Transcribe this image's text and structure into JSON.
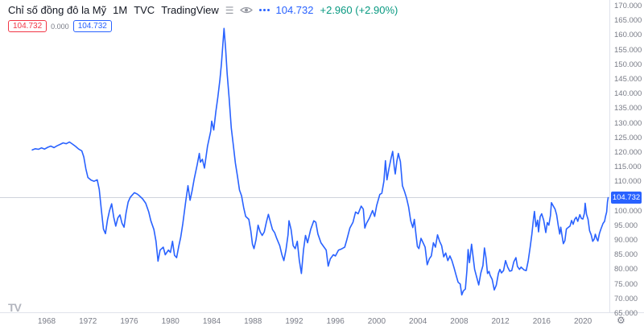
{
  "header": {
    "symbol": "Chỉ số đồng đô la Mỹ",
    "interval": "1M",
    "exchange": "TVC",
    "brand": "TradingView",
    "last_price": "104.732",
    "change": "+2.960 (+2.90%)"
  },
  "trade": {
    "sell": "104.732",
    "spread": "0.000",
    "buy": "104.732"
  },
  "price_axis": {
    "ticks": [
      "170.000",
      "165.000",
      "160.000",
      "155.000",
      "150.000",
      "145.000",
      "140.000",
      "135.000",
      "130.000",
      "125.000",
      "120.000",
      "115.000",
      "110.000",
      "105.000",
      "100.000",
      "95.000",
      "90.000",
      "85.000",
      "80.000",
      "75.000",
      "70.000",
      "65.000"
    ],
    "last_price_label": "104.732"
  },
  "time_axis": {
    "ticks": [
      "1968",
      "1972",
      "1976",
      "1980",
      "1984",
      "1988",
      "1992",
      "1996",
      "2000",
      "2004",
      "2008",
      "2012",
      "2016",
      "2020"
    ]
  },
  "footer": {
    "logo": "TV"
  },
  "colors": {
    "line": "#2962FF",
    "up": "#089981",
    "down": "#F23645",
    "axis_text": "#787B86",
    "grid": "#E0E3EB",
    "price_line": "#CFD3DC",
    "badge_bg": "#2962FF"
  },
  "chart_data": {
    "type": "line",
    "title": "Chỉ số đồng đô la Mỹ (US Dollar Index), 1M, TVC",
    "xlabel": "",
    "ylabel": "",
    "xlim": [
      1966.5,
      2023.2
    ],
    "ylim": [
      65,
      170
    ],
    "x_ticks": [
      1968,
      1972,
      1976,
      1980,
      1984,
      1988,
      1992,
      1996,
      2000,
      2004,
      2008,
      2012,
      2016,
      2020
    ],
    "y_ticks": [
      65,
      70,
      75,
      80,
      85,
      90,
      95,
      100,
      105,
      110,
      115,
      120,
      125,
      130,
      135,
      140,
      145,
      150,
      155,
      160,
      165,
      170
    ],
    "grid": "off",
    "last": 104.732,
    "change": 2.96,
    "change_pct": 2.9,
    "points": [
      [
        1966.6,
        121.0
      ],
      [
        1966.9,
        121.4
      ],
      [
        1967.2,
        121.2
      ],
      [
        1967.5,
        121.7
      ],
      [
        1967.8,
        121.3
      ],
      [
        1968.1,
        121.9
      ],
      [
        1968.4,
        122.3
      ],
      [
        1968.7,
        121.8
      ],
      [
        1969.0,
        122.4
      ],
      [
        1969.3,
        122.9
      ],
      [
        1969.6,
        123.4
      ],
      [
        1969.9,
        123.1
      ],
      [
        1970.2,
        123.7
      ],
      [
        1970.5,
        123.0
      ],
      [
        1970.8,
        122.2
      ],
      [
        1971.1,
        121.3
      ],
      [
        1971.4,
        120.7
      ],
      [
        1971.6,
        118.6
      ],
      [
        1971.8,
        114.5
      ],
      [
        1972.0,
        111.6
      ],
      [
        1972.3,
        110.7
      ],
      [
        1972.6,
        110.3
      ],
      [
        1972.9,
        110.8
      ],
      [
        1973.1,
        107.5
      ],
      [
        1973.3,
        100.5
      ],
      [
        1973.5,
        94.0
      ],
      [
        1973.7,
        92.4
      ],
      [
        1973.9,
        97.2
      ],
      [
        1974.1,
        100.3
      ],
      [
        1974.3,
        102.6
      ],
      [
        1974.5,
        98.0
      ],
      [
        1974.7,
        95.0
      ],
      [
        1974.9,
        97.8
      ],
      [
        1975.1,
        98.8
      ],
      [
        1975.3,
        96.0
      ],
      [
        1975.5,
        94.6
      ],
      [
        1975.7,
        99.5
      ],
      [
        1975.9,
        103.2
      ],
      [
        1976.1,
        104.8
      ],
      [
        1976.3,
        105.6
      ],
      [
        1976.5,
        106.4
      ],
      [
        1976.8,
        105.9
      ],
      [
        1977.0,
        105.3
      ],
      [
        1977.3,
        104.3
      ],
      [
        1977.6,
        102.8
      ],
      [
        1977.9,
        99.8
      ],
      [
        1978.1,
        96.8
      ],
      [
        1978.4,
        93.8
      ],
      [
        1978.6,
        89.8
      ],
      [
        1978.8,
        83.0
      ],
      [
        1979.0,
        86.8
      ],
      [
        1979.3,
        87.8
      ],
      [
        1979.5,
        85.2
      ],
      [
        1979.8,
        86.8
      ],
      [
        1980.0,
        86.0
      ],
      [
        1980.2,
        89.8
      ],
      [
        1980.4,
        85.0
      ],
      [
        1980.6,
        84.2
      ],
      [
        1980.8,
        88.0
      ],
      [
        1981.0,
        91.2
      ],
      [
        1981.2,
        95.8
      ],
      [
        1981.5,
        103.8
      ],
      [
        1981.7,
        108.8
      ],
      [
        1981.9,
        103.8
      ],
      [
        1982.1,
        107.0
      ],
      [
        1982.3,
        111.0
      ],
      [
        1982.6,
        116.0
      ],
      [
        1982.8,
        119.8
      ],
      [
        1982.9,
        116.8
      ],
      [
        1983.1,
        117.8
      ],
      [
        1983.3,
        114.8
      ],
      [
        1983.6,
        122.3
      ],
      [
        1983.9,
        127.3
      ],
      [
        1984.0,
        130.8
      ],
      [
        1984.2,
        127.8
      ],
      [
        1984.4,
        134.0
      ],
      [
        1984.6,
        139.0
      ],
      [
        1984.8,
        145.0
      ],
      [
        1984.95,
        150.5
      ],
      [
        1985.1,
        158.0
      ],
      [
        1985.2,
        162.5
      ],
      [
        1985.35,
        155.5
      ],
      [
        1985.5,
        147.0
      ],
      [
        1985.7,
        138.5
      ],
      [
        1985.9,
        128.5
      ],
      [
        1986.1,
        122.5
      ],
      [
        1986.3,
        116.5
      ],
      [
        1986.5,
        112.0
      ],
      [
        1986.7,
        107.3
      ],
      [
        1986.9,
        105.3
      ],
      [
        1987.1,
        101.3
      ],
      [
        1987.3,
        98.3
      ],
      [
        1987.6,
        97.3
      ],
      [
        1987.8,
        93.3
      ],
      [
        1987.95,
        88.8
      ],
      [
        1988.1,
        87.3
      ],
      [
        1988.3,
        90.3
      ],
      [
        1988.5,
        95.3
      ],
      [
        1988.7,
        93.0
      ],
      [
        1988.9,
        91.8
      ],
      [
        1989.1,
        93.0
      ],
      [
        1989.3,
        96.3
      ],
      [
        1989.5,
        99.0
      ],
      [
        1989.7,
        96.3
      ],
      [
        1989.9,
        93.8
      ],
      [
        1990.1,
        92.8
      ],
      [
        1990.3,
        90.8
      ],
      [
        1990.6,
        88.3
      ],
      [
        1990.8,
        85.3
      ],
      [
        1991.0,
        83.2
      ],
      [
        1991.2,
        86.8
      ],
      [
        1991.4,
        92.0
      ],
      [
        1991.5,
        96.8
      ],
      [
        1991.7,
        93.8
      ],
      [
        1991.9,
        88.3
      ],
      [
        1992.1,
        87.3
      ],
      [
        1992.3,
        89.8
      ],
      [
        1992.5,
        83.3
      ],
      [
        1992.7,
        78.8
      ],
      [
        1992.9,
        86.8
      ],
      [
        1993.1,
        91.8
      ],
      [
        1993.3,
        89.3
      ],
      [
        1993.6,
        93.8
      ],
      [
        1993.9,
        96.8
      ],
      [
        1994.1,
        96.3
      ],
      [
        1994.3,
        92.3
      ],
      [
        1994.6,
        89.3
      ],
      [
        1994.9,
        87.8
      ],
      [
        1995.1,
        86.8
      ],
      [
        1995.3,
        81.3
      ],
      [
        1995.5,
        83.8
      ],
      [
        1995.8,
        85.2
      ],
      [
        1996.0,
        84.8
      ],
      [
        1996.3,
        86.8
      ],
      [
        1996.6,
        87.2
      ],
      [
        1996.9,
        87.8
      ],
      [
        1997.1,
        90.3
      ],
      [
        1997.4,
        94.3
      ],
      [
        1997.7,
        96.3
      ],
      [
        1997.95,
        99.8
      ],
      [
        1998.2,
        99.2
      ],
      [
        1998.5,
        101.8
      ],
      [
        1998.7,
        100.8
      ],
      [
        1998.85,
        94.3
      ],
      [
        1999.0,
        95.8
      ],
      [
        1999.3,
        97.8
      ],
      [
        1999.6,
        100.3
      ],
      [
        1999.8,
        98.3
      ],
      [
        2000.0,
        102.0
      ],
      [
        2000.3,
        105.8
      ],
      [
        2000.5,
        106.2
      ],
      [
        2000.7,
        110.3
      ],
      [
        2000.85,
        117.3
      ],
      [
        2001.0,
        110.8
      ],
      [
        2001.2,
        114.8
      ],
      [
        2001.4,
        118.3
      ],
      [
        2001.55,
        120.5
      ],
      [
        2001.7,
        115.3
      ],
      [
        2001.8,
        112.8
      ],
      [
        2001.95,
        117.0
      ],
      [
        2002.1,
        119.8
      ],
      [
        2002.3,
        117.0
      ],
      [
        2002.5,
        108.8
      ],
      [
        2002.7,
        106.8
      ],
      [
        2002.9,
        104.5
      ],
      [
        2003.1,
        101.5
      ],
      [
        2003.3,
        96.8
      ],
      [
        2003.5,
        94.5
      ],
      [
        2003.65,
        97.3
      ],
      [
        2003.8,
        92.5
      ],
      [
        2003.95,
        88.0
      ],
      [
        2004.1,
        87.3
      ],
      [
        2004.3,
        90.8
      ],
      [
        2004.5,
        89.3
      ],
      [
        2004.7,
        87.8
      ],
      [
        2004.9,
        81.8
      ],
      [
        2005.1,
        83.8
      ],
      [
        2005.3,
        84.8
      ],
      [
        2005.5,
        89.3
      ],
      [
        2005.7,
        87.8
      ],
      [
        2005.9,
        92.0
      ],
      [
        2006.1,
        89.8
      ],
      [
        2006.3,
        88.3
      ],
      [
        2006.5,
        84.5
      ],
      [
        2006.7,
        85.8
      ],
      [
        2006.9,
        83.2
      ],
      [
        2007.1,
        84.8
      ],
      [
        2007.3,
        83.2
      ],
      [
        2007.5,
        80.8
      ],
      [
        2007.7,
        78.2
      ],
      [
        2007.9,
        75.8
      ],
      [
        2008.1,
        75.2
      ],
      [
        2008.25,
        71.5
      ],
      [
        2008.4,
        72.8
      ],
      [
        2008.6,
        73.5
      ],
      [
        2008.75,
        79.8
      ],
      [
        2008.87,
        87.0
      ],
      [
        2009.0,
        82.5
      ],
      [
        2009.2,
        88.8
      ],
      [
        2009.35,
        84.5
      ],
      [
        2009.5,
        80.2
      ],
      [
        2009.7,
        77.5
      ],
      [
        2009.9,
        74.9
      ],
      [
        2010.1,
        79.0
      ],
      [
        2010.3,
        81.5
      ],
      [
        2010.45,
        87.5
      ],
      [
        2010.6,
        84.2
      ],
      [
        2010.75,
        78.8
      ],
      [
        2010.9,
        79.5
      ],
      [
        2011.0,
        78.2
      ],
      [
        2011.2,
        76.8
      ],
      [
        2011.4,
        73.2
      ],
      [
        2011.6,
        74.8
      ],
      [
        2011.8,
        78.8
      ],
      [
        2011.95,
        80.2
      ],
      [
        2012.1,
        79.0
      ],
      [
        2012.3,
        79.8
      ],
      [
        2012.5,
        83.2
      ],
      [
        2012.7,
        81.0
      ],
      [
        2012.9,
        79.6
      ],
      [
        2013.1,
        79.8
      ],
      [
        2013.3,
        82.8
      ],
      [
        2013.5,
        84.2
      ],
      [
        2013.65,
        81.2
      ],
      [
        2013.85,
        80.2
      ],
      [
        2014.0,
        81.0
      ],
      [
        2014.3,
        80.0
      ],
      [
        2014.5,
        79.8
      ],
      [
        2014.7,
        83.2
      ],
      [
        2014.9,
        88.2
      ],
      [
        2015.05,
        92.2
      ],
      [
        2015.2,
        97.2
      ],
      [
        2015.3,
        100.0
      ],
      [
        2015.45,
        94.8
      ],
      [
        2015.6,
        97.0
      ],
      [
        2015.7,
        93.0
      ],
      [
        2015.85,
        98.2
      ],
      [
        2016.0,
        99.2
      ],
      [
        2016.2,
        97.0
      ],
      [
        2016.4,
        92.8
      ],
      [
        2016.55,
        96.2
      ],
      [
        2016.7,
        95.3
      ],
      [
        2016.85,
        98.6
      ],
      [
        2016.95,
        103.0
      ],
      [
        2017.1,
        102.0
      ],
      [
        2017.3,
        100.8
      ],
      [
        2017.45,
        98.8
      ],
      [
        2017.6,
        95.3
      ],
      [
        2017.75,
        92.3
      ],
      [
        2017.85,
        94.6
      ],
      [
        2017.95,
        92.2
      ],
      [
        2018.1,
        89.0
      ],
      [
        2018.25,
        90.0
      ],
      [
        2018.4,
        94.0
      ],
      [
        2018.6,
        94.6
      ],
      [
        2018.75,
        95.0
      ],
      [
        2018.9,
        96.9
      ],
      [
        2019.05,
        95.6
      ],
      [
        2019.2,
        97.3
      ],
      [
        2019.35,
        98.0
      ],
      [
        2019.5,
        96.6
      ],
      [
        2019.7,
        98.9
      ],
      [
        2019.85,
        97.6
      ],
      [
        2020.0,
        97.4
      ],
      [
        2020.15,
        99.4
      ],
      [
        2020.22,
        102.8
      ],
      [
        2020.35,
        99.0
      ],
      [
        2020.5,
        97.3
      ],
      [
        2020.65,
        93.4
      ],
      [
        2020.8,
        92.0
      ],
      [
        2020.95,
        89.8
      ],
      [
        2021.1,
        90.6
      ],
      [
        2021.2,
        92.2
      ],
      [
        2021.35,
        90.6
      ],
      [
        2021.45,
        89.9
      ],
      [
        2021.6,
        92.4
      ],
      [
        2021.75,
        94.0
      ],
      [
        2021.95,
        95.9
      ],
      [
        2022.1,
        96.6
      ],
      [
        2022.2,
        98.4
      ],
      [
        2022.3,
        99.8
      ],
      [
        2022.38,
        103.2
      ],
      [
        2022.45,
        104.732
      ]
    ]
  }
}
